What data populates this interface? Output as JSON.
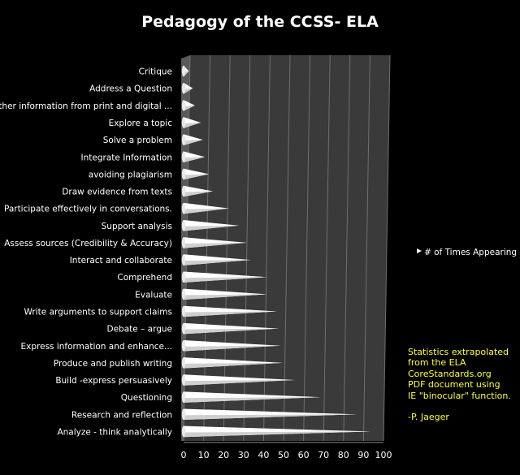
{
  "chart_data": {
    "type": "bar",
    "title": "Pedagogy of the CCSS- ELA",
    "categories": [
      "Critique",
      "Address a Question",
      "Gather information from print and digital ...",
      "Explore a topic",
      "Solve a problem",
      "Integrate Information",
      "avoiding plagiarism",
      "Draw evidence from texts",
      "Participate effectively in conversations.",
      "Support analysis",
      "Assess sources (Credibility & Accuracy)",
      "Interact and collaborate",
      "Comprehend",
      "Evaluate",
      "Write arguments to support claims",
      "Debate – argue",
      "Express information and enhance...",
      "Produce and publish writing",
      "Build  -express persuasively",
      "Questioning",
      "Research and reflection",
      "Analyze - think analytically"
    ],
    "series": [
      {
        "name": "# of Times Appearing",
        "values": [
          1,
          3,
          4,
          7,
          8,
          9,
          11,
          13,
          21,
          26,
          30,
          32,
          40,
          40,
          45,
          46,
          47,
          48,
          54,
          67,
          85,
          92
        ]
      }
    ],
    "x_ticks": [
      "0",
      "10",
      "20",
      "30",
      "40",
      "50",
      "60",
      "70",
      "80",
      "90",
      "100"
    ],
    "xlim": [
      0,
      100
    ],
    "orientation": "horizontal",
    "bar_shape": "cone",
    "grid": true,
    "legend": "right",
    "colors": {
      "background": "#000000",
      "plot_area": "#3a3a3a",
      "grid": "#6f6f6f",
      "bar": "#ffffff",
      "text": "#ffffff",
      "note": "#ffff33"
    }
  },
  "note": {
    "text": "Statistics extrapolated\nfrom the  ELA\nCoreStandards.org\nPDF document  using\nIE \"binocular\" function.",
    "author": "-P. Jaeger"
  }
}
